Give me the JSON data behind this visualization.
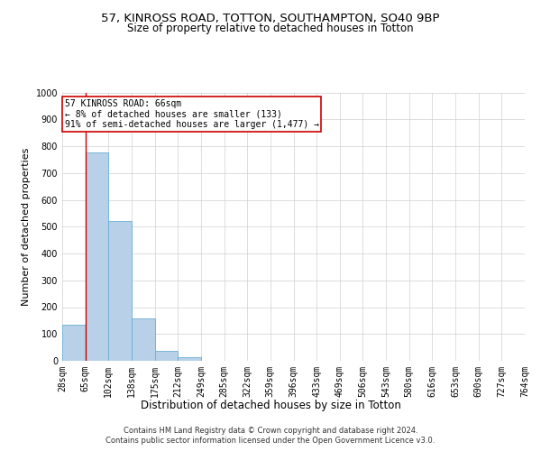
{
  "title1": "57, KINROSS ROAD, TOTTON, SOUTHAMPTON, SO40 9BP",
  "title2": "Size of property relative to detached houses in Totton",
  "xlabel": "Distribution of detached houses by size in Totton",
  "ylabel": "Number of detached properties",
  "footer1": "Contains HM Land Registry data © Crown copyright and database right 2024.",
  "footer2": "Contains public sector information licensed under the Open Government Licence v3.0.",
  "bin_labels": [
    "28sqm",
    "65sqm",
    "102sqm",
    "138sqm",
    "175sqm",
    "212sqm",
    "249sqm",
    "285sqm",
    "322sqm",
    "359sqm",
    "396sqm",
    "433sqm",
    "469sqm",
    "506sqm",
    "543sqm",
    "580sqm",
    "616sqm",
    "653sqm",
    "690sqm",
    "727sqm",
    "764sqm"
  ],
  "bar_values": [
    133,
    775,
    520,
    158,
    38,
    12,
    0,
    0,
    0,
    0,
    0,
    0,
    0,
    0,
    0,
    0,
    0,
    0,
    0,
    0
  ],
  "bar_color": "#b8d0e8",
  "bar_edge_color": "#6aaed6",
  "vline_x": 1.0,
  "vline_color": "#cc0000",
  "annotation_box_text": "57 KINROSS ROAD: 66sqm\n← 8% of detached houses are smaller (133)\n91% of semi-detached houses are larger (1,477) →",
  "annotation_box_color": "#cc0000",
  "annotation_box_facecolor": "white",
  "ylim": [
    0,
    1000
  ],
  "yticks": [
    0,
    100,
    200,
    300,
    400,
    500,
    600,
    700,
    800,
    900,
    1000
  ],
  "background_color": "#ffffff",
  "grid_color": "#d0d0d0",
  "title1_fontsize": 9.5,
  "title2_fontsize": 8.5,
  "xlabel_fontsize": 8.5,
  "ylabel_fontsize": 8,
  "tick_fontsize": 7,
  "annotation_fontsize": 7,
  "footer_fontsize": 6
}
